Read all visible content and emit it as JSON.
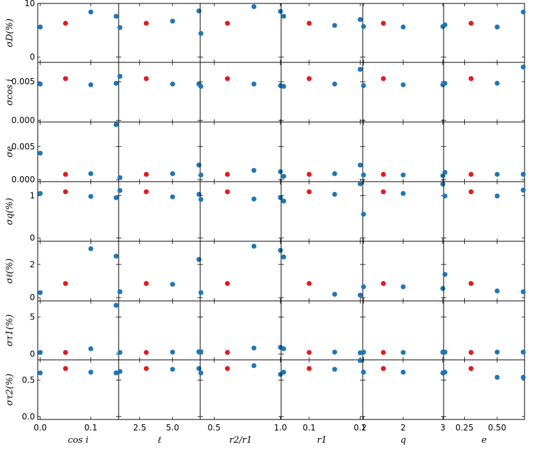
{
  "chart_data": {
    "type": "scatter",
    "description_rows": "7 rows (uncertainties) x 6 columns (injected parameter)",
    "colors": {
      "varied": "#1f77b4",
      "reference": "#e31a1c"
    },
    "columns": [
      {
        "key": "cosi",
        "xlabel": "cos i",
        "x": [
          0.0,
          0.05,
          0.1,
          0.15
        ],
        "xlim": [
          -0.005,
          0.155
        ],
        "xticks": [
          "0.0",
          "0.1"
        ],
        "xtick_values": [
          0.0,
          0.1
        ]
      },
      {
        "key": "ell",
        "xlabel": "ℓ",
        "x": [
          1.0,
          3.0,
          5.0,
          7.0
        ],
        "xlim": [
          0.9,
          7.1
        ],
        "xticks": [
          "2.5",
          "5.0"
        ],
        "xtick_values": [
          2.5,
          5.0
        ]
      },
      {
        "key": "r2r1",
        "xlabel": "r2/r1",
        "x": [
          0.4,
          0.6,
          0.8,
          1.0
        ],
        "xlim": [
          0.395,
          1.005
        ],
        "xticks": [
          "0.5",
          "1.0"
        ],
        "xtick_values": [
          0.5,
          1.0
        ]
      },
      {
        "key": "r1",
        "xlabel": "r1",
        "x": [
          0.05,
          0.1,
          0.15,
          0.2
        ],
        "xlim": [
          0.045,
          0.205
        ],
        "xticks": [
          "0.1",
          "0.2"
        ],
        "xtick_values": [
          0.1,
          0.2
        ]
      },
      {
        "key": "q",
        "xlabel": "q",
        "x": [
          1.0,
          1.5,
          2.0,
          3.0
        ],
        "xlim": [
          0.98,
          3.02
        ],
        "xticks": [
          "1",
          "2",
          "3"
        ],
        "xtick_values": [
          1.0,
          2.0,
          3.0
        ]
      },
      {
        "key": "e",
        "xlabel": "e",
        "x": [
          0.1,
          0.3,
          0.5,
          0.7
        ],
        "xlim": [
          0.09,
          0.71
        ],
        "xticks": [
          "0.25",
          "0.50"
        ],
        "xtick_values": [
          0.25,
          0.5
        ]
      }
    ],
    "reference_index": 1,
    "rows": [
      {
        "ylabel": "σD(%)",
        "ylim": [
          -1,
          10
        ],
        "yticks": [
          "0",
          "10"
        ],
        "ytick_values": [
          0,
          10
        ],
        "values": [
          [
            5.6,
            6.3,
            8.4,
            7.6
          ],
          [
            5.5,
            6.3,
            6.7,
            8.6
          ],
          [
            4.4,
            6.3,
            9.4,
            8.5
          ],
          [
            7.6,
            6.3,
            5.9,
            7.0
          ],
          [
            5.7,
            6.3,
            5.6,
            5.7
          ],
          [
            6.0,
            6.3,
            5.6,
            8.4
          ]
        ]
      },
      {
        "ylabel": "σcos i",
        "ylim": [
          -0.0002,
          0.0075
        ],
        "yticks": [
          "0.000",
          "0.005"
        ],
        "ytick_values": [
          0.0,
          0.005
        ],
        "values": [
          [
            0.0047,
            0.0054,
            0.0046,
            0.0048
          ],
          [
            0.0057,
            0.0054,
            0.0047,
            0.0047
          ],
          [
            0.0044,
            0.0054,
            0.0047,
            0.0045
          ],
          [
            0.0044,
            0.0054,
            0.0047,
            0.0066
          ],
          [
            0.0045,
            0.0054,
            0.0046,
            0.0046
          ],
          [
            0.0048,
            0.0054,
            0.0048,
            0.0069
          ]
        ]
      },
      {
        "ylabel": "σe",
        "ylim": [
          -0.0003,
          0.0087
        ],
        "yticks": [
          "0.000",
          "0.005"
        ],
        "ytick_values": [
          0.0,
          0.005
        ],
        "values": [
          [
            0.004,
            0.0008,
            0.0009,
            0.0083
          ],
          [
            0.0003,
            0.0008,
            0.0009,
            0.0022
          ],
          [
            0.0007,
            0.0008,
            0.0014,
            0.0012
          ],
          [
            0.0005,
            0.0008,
            0.0009,
            0.0022
          ],
          [
            0.0007,
            0.0008,
            0.0007,
            0.0006
          ],
          [
            0.0011,
            0.0008,
            0.0008,
            0.0008
          ]
        ]
      },
      {
        "ylabel": "σq(%)",
        "ylim": [
          -0.08,
          1.33
        ],
        "yticks": [
          "0",
          "1"
        ],
        "ytick_values": [
          0,
          1
        ],
        "values": [
          [
            1.05,
            1.09,
            0.98,
            0.95
          ],
          [
            1.12,
            1.09,
            0.97,
            1.03
          ],
          [
            0.91,
            1.09,
            0.92,
            0.95
          ],
          [
            0.87,
            1.09,
            1.03,
            1.28
          ],
          [
            0.56,
            1.09,
            1.05,
            1.27
          ],
          [
            0.99,
            1.09,
            0.99,
            1.13
          ]
        ]
      },
      {
        "ylabel": "σℓ(%)",
        "ylim": [
          -0.2,
          3.4
        ],
        "yticks": [
          "0",
          "2"
        ],
        "ytick_values": [
          0,
          2
        ],
        "values": [
          [
            0.3,
            0.85,
            2.95,
            2.5
          ],
          [
            0.35,
            0.85,
            0.8,
            2.3
          ],
          [
            0.3,
            0.85,
            3.1,
            2.85
          ],
          [
            2.45,
            0.85,
            0.2,
            0.15
          ],
          [
            0.65,
            0.85,
            0.65,
            0.55
          ],
          [
            1.4,
            0.85,
            0.4,
            0.35
          ]
        ]
      },
      {
        "ylabel": "στ1(%)",
        "ylim": [
          -0.8,
          7.2
        ],
        "yticks": [
          "0",
          "5"
        ],
        "ytick_values": [
          0,
          5
        ],
        "values": [
          [
            0.2,
            0.2,
            0.7,
            6.6
          ],
          [
            0.2,
            0.2,
            0.25,
            0.3
          ],
          [
            0.3,
            0.2,
            0.8,
            0.9
          ],
          [
            0.7,
            0.2,
            0.25,
            0.15
          ],
          [
            0.25,
            0.2,
            0.2,
            0.25
          ],
          [
            0.25,
            0.2,
            0.25,
            0.25
          ]
        ]
      },
      {
        "ylabel": "στ2(%)",
        "ylim": [
          -0.04,
          0.78
        ],
        "yticks": [
          "0.0",
          "0.5"
        ],
        "ytick_values": [
          0.0,
          0.5
        ],
        "values": [
          [
            0.6,
            0.66,
            0.61,
            0.6
          ],
          [
            0.62,
            0.66,
            0.65,
            0.66
          ],
          [
            0.6,
            0.66,
            0.7,
            0.58
          ],
          [
            0.61,
            0.66,
            0.65,
            0.77
          ],
          [
            0.61,
            0.66,
            0.61,
            0.6
          ],
          [
            0.61,
            0.66,
            0.54,
            0.54
          ]
        ]
      }
    ]
  }
}
